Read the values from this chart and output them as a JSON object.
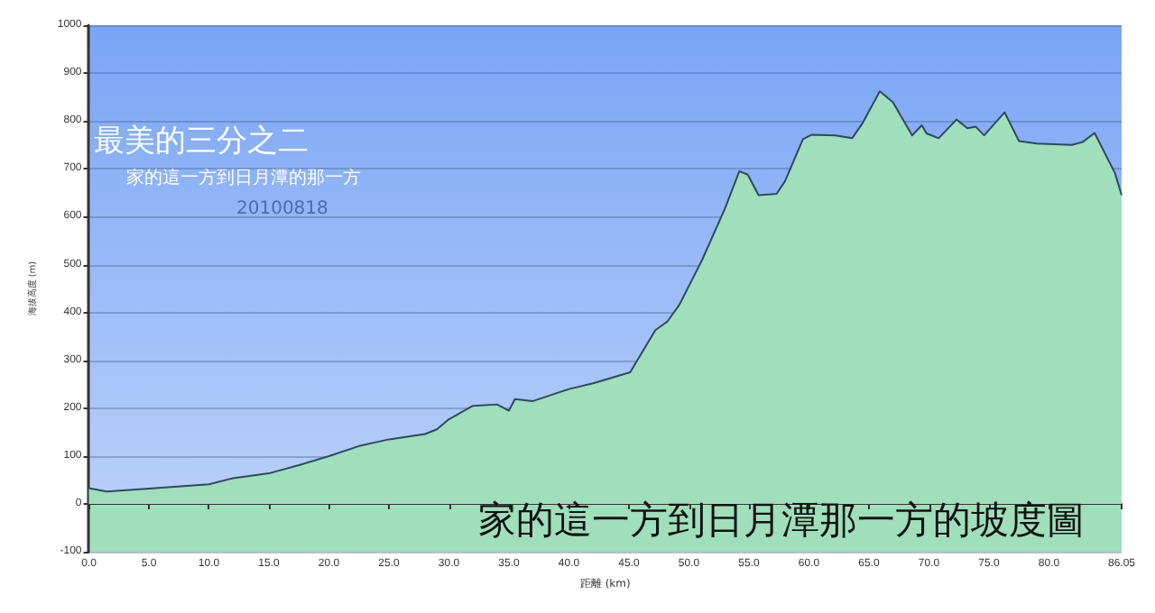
{
  "chart_data": {
    "type": "area",
    "title": "家的這一方到日月潭那一方的坡度圖",
    "xlabel": "距離 (km)",
    "ylabel": "海拔高度 (m)",
    "annotations": [
      "最美的三分之二",
      "家的這一方到日月潭的那一方",
      "20100818"
    ],
    "x": [
      0,
      1.5,
      5,
      10,
      12,
      15,
      17.5,
      20,
      22.5,
      25,
      28,
      29,
      30,
      32,
      34,
      35,
      35.5,
      37,
      40,
      42,
      45.1,
      47.2,
      48.2,
      49.2,
      51.1,
      53,
      54.2,
      54.9,
      55.8,
      57.3,
      58,
      59.5,
      60.2,
      62.2,
      63.6,
      64.5,
      65.9,
      67,
      68.6,
      69.4,
      69.8,
      70.8,
      72.3,
      73.2,
      73.9,
      74.6,
      76.3,
      77.5,
      79,
      81.9,
      82.8,
      83.8,
      85.5,
      86.05
    ],
    "series": [
      {
        "color": "#2e4a5c",
        "values": [
          33,
          26,
          32,
          41,
          54,
          64,
          81,
          100,
          121,
          135,
          146,
          156,
          177,
          205,
          208,
          195,
          219,
          215,
          240,
          252,
          275,
          363,
          381,
          416,
          510,
          617,
          695,
          688,
          645,
          648,
          674,
          762,
          771,
          770,
          764,
          797,
          862,
          839,
          770,
          791,
          774,
          764,
          803,
          785,
          788,
          770,
          818,
          758,
          753,
          750,
          756,
          775,
          691,
          645
        ]
      }
    ],
    "xlim": [
      0,
      86.05
    ],
    "xticks": [
      {
        "value": 0,
        "label": "0.0"
      },
      {
        "value": 5,
        "label": "5.0"
      },
      {
        "value": 10,
        "label": "10.0"
      },
      {
        "value": 15,
        "label": "15.0"
      },
      {
        "value": 20,
        "label": "20.0"
      },
      {
        "value": 25,
        "label": "25.0"
      },
      {
        "value": 30,
        "label": "30.0"
      },
      {
        "value": 35,
        "label": "35.0"
      },
      {
        "value": 40,
        "label": "40.0"
      },
      {
        "value": 45,
        "label": "45.0"
      },
      {
        "value": 50,
        "label": "50.0"
      },
      {
        "value": 55,
        "label": "55.0"
      },
      {
        "value": 60,
        "label": "60.0"
      },
      {
        "value": 65,
        "label": "65.0"
      },
      {
        "value": 70,
        "label": "70.0"
      },
      {
        "value": 75,
        "label": "75.0"
      },
      {
        "value": 80,
        "label": "80.0"
      },
      86.05
    ],
    "ylim": [
      -100,
      1000
    ],
    "yticks": [
      -100,
      0,
      100,
      200,
      300,
      400,
      500,
      600,
      700,
      800,
      900,
      1000
    ],
    "grid": "y",
    "marker": "none",
    "line_style": "solid"
  }
}
